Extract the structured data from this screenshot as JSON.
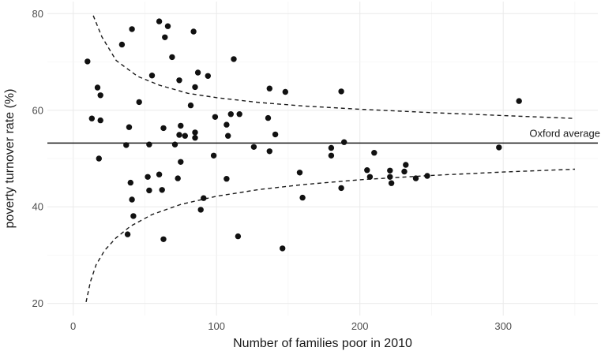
{
  "chart_data": {
    "type": "scatter",
    "xlabel": "Number of families poor in 2010",
    "ylabel": "poverty turnover rate (%)",
    "xlim": [
      -18,
      366
    ],
    "ylim": [
      17.5,
      82.5
    ],
    "x_ticks": [
      0,
      100,
      200,
      300
    ],
    "y_ticks": [
      20,
      40,
      60,
      80
    ],
    "grid": true,
    "reference_line": {
      "y": 53.2,
      "label": "Oxford average"
    },
    "band": {
      "center": 53.2,
      "x_range": [
        9,
        350
      ],
      "upper": [
        [
          14,
          79.6
        ],
        [
          20,
          75.2
        ],
        [
          30,
          70.3
        ],
        [
          45,
          67.0
        ],
        [
          60,
          65.2
        ],
        [
          80,
          63.5
        ],
        [
          100,
          62.6
        ],
        [
          130,
          61.6
        ],
        [
          160,
          60.9
        ],
        [
          200,
          60.2
        ],
        [
          250,
          59.5
        ],
        [
          300,
          58.9
        ],
        [
          350,
          58.3
        ]
      ],
      "lower": [
        [
          9,
          20.3
        ],
        [
          12,
          24.5
        ],
        [
          16,
          28.0
        ],
        [
          22,
          31.0
        ],
        [
          30,
          33.6
        ],
        [
          40,
          36.0
        ],
        [
          55,
          38.4
        ],
        [
          75,
          40.5
        ],
        [
          100,
          42.2
        ],
        [
          130,
          43.6
        ],
        [
          160,
          44.6
        ],
        [
          200,
          45.6
        ],
        [
          250,
          46.5
        ],
        [
          300,
          47.2
        ],
        [
          350,
          47.8
        ]
      ]
    },
    "points": [
      {
        "x": 10,
        "y": 70.1
      },
      {
        "x": 13,
        "y": 58.3
      },
      {
        "x": 17,
        "y": 64.7
      },
      {
        "x": 19,
        "y": 63.1
      },
      {
        "x": 19,
        "y": 57.9
      },
      {
        "x": 18,
        "y": 50.0
      },
      {
        "x": 34,
        "y": 73.6
      },
      {
        "x": 41,
        "y": 76.8
      },
      {
        "x": 37,
        "y": 52.8
      },
      {
        "x": 39,
        "y": 56.5
      },
      {
        "x": 46,
        "y": 61.7
      },
      {
        "x": 40,
        "y": 45.0
      },
      {
        "x": 41,
        "y": 41.5
      },
      {
        "x": 42,
        "y": 38.1
      },
      {
        "x": 38,
        "y": 34.3
      },
      {
        "x": 55,
        "y": 67.2
      },
      {
        "x": 53,
        "y": 52.9
      },
      {
        "x": 52,
        "y": 46.2
      },
      {
        "x": 53,
        "y": 43.4
      },
      {
        "x": 60,
        "y": 78.4
      },
      {
        "x": 64,
        "y": 75.1
      },
      {
        "x": 66,
        "y": 77.4
      },
      {
        "x": 69,
        "y": 71.0
      },
      {
        "x": 74,
        "y": 66.2
      },
      {
        "x": 60,
        "y": 46.7
      },
      {
        "x": 63,
        "y": 56.3
      },
      {
        "x": 62,
        "y": 43.5
      },
      {
        "x": 63,
        "y": 33.3
      },
      {
        "x": 71,
        "y": 52.9
      },
      {
        "x": 73,
        "y": 45.9
      },
      {
        "x": 74,
        "y": 54.9
      },
      {
        "x": 75,
        "y": 56.8
      },
      {
        "x": 75,
        "y": 49.3
      },
      {
        "x": 78,
        "y": 54.7
      },
      {
        "x": 84,
        "y": 76.3
      },
      {
        "x": 82,
        "y": 61.0
      },
      {
        "x": 85,
        "y": 64.8
      },
      {
        "x": 87,
        "y": 67.8
      },
      {
        "x": 85,
        "y": 55.4
      },
      {
        "x": 85,
        "y": 54.3
      },
      {
        "x": 94,
        "y": 67.1
      },
      {
        "x": 91,
        "y": 41.8
      },
      {
        "x": 89,
        "y": 39.4
      },
      {
        "x": 99,
        "y": 58.6
      },
      {
        "x": 98,
        "y": 50.6
      },
      {
        "x": 107,
        "y": 57.0
      },
      {
        "x": 110,
        "y": 59.2
      },
      {
        "x": 108,
        "y": 54.7
      },
      {
        "x": 107,
        "y": 45.8
      },
      {
        "x": 112,
        "y": 70.6
      },
      {
        "x": 116,
        "y": 59.2
      },
      {
        "x": 115,
        "y": 33.9
      },
      {
        "x": 126,
        "y": 52.4
      },
      {
        "x": 137,
        "y": 64.5
      },
      {
        "x": 136,
        "y": 58.4
      },
      {
        "x": 141,
        "y": 55.0
      },
      {
        "x": 137,
        "y": 51.5
      },
      {
        "x": 148,
        "y": 63.8
      },
      {
        "x": 146,
        "y": 31.4
      },
      {
        "x": 158,
        "y": 47.1
      },
      {
        "x": 160,
        "y": 41.9
      },
      {
        "x": 180,
        "y": 52.2
      },
      {
        "x": 180,
        "y": 50.6
      },
      {
        "x": 187,
        "y": 63.9
      },
      {
        "x": 189,
        "y": 53.4
      },
      {
        "x": 187,
        "y": 43.9
      },
      {
        "x": 210,
        "y": 51.2
      },
      {
        "x": 205,
        "y": 47.6
      },
      {
        "x": 207,
        "y": 46.2
      },
      {
        "x": 221,
        "y": 47.5
      },
      {
        "x": 221,
        "y": 46.2
      },
      {
        "x": 222,
        "y": 44.9
      },
      {
        "x": 232,
        "y": 48.7
      },
      {
        "x": 231,
        "y": 47.3
      },
      {
        "x": 239,
        "y": 45.9
      },
      {
        "x": 247,
        "y": 46.4
      },
      {
        "x": 297,
        "y": 52.3
      },
      {
        "x": 311,
        "y": 61.9
      }
    ]
  }
}
